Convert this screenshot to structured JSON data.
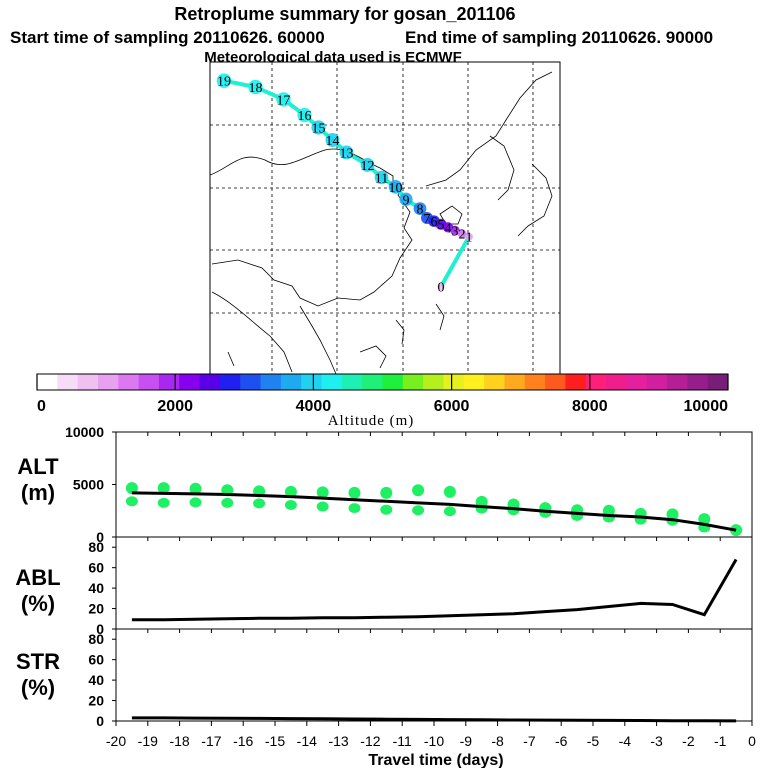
{
  "header": {
    "title": "Retroplume summary for gosan_201106",
    "start_label": "Start time of sampling 20110626. 60000",
    "end_label": "End time of sampling 20110626. 90000",
    "met_label": "Meteorological data used is ECMWF"
  },
  "chart_data": [
    {
      "type": "map",
      "title": "Retroplume summary for gosan_201106",
      "plume_points": [
        {
          "label": "19",
          "lon": 0.04,
          "lat": 0.06,
          "alt": 4300
        },
        {
          "label": "18",
          "lon": 0.13,
          "lat": 0.08,
          "alt": 4250
        },
        {
          "label": "17",
          "lon": 0.21,
          "lat": 0.12,
          "alt": 4200
        },
        {
          "label": "16",
          "lon": 0.27,
          "lat": 0.17,
          "alt": 4150
        },
        {
          "label": "15",
          "lon": 0.31,
          "lat": 0.21,
          "alt": 4100
        },
        {
          "label": "14",
          "lon": 0.35,
          "lat": 0.25,
          "alt": 4000
        },
        {
          "label": "13",
          "lon": 0.39,
          "lat": 0.29,
          "alt": 3950
        },
        {
          "label": "12",
          "lon": 0.45,
          "lat": 0.33,
          "alt": 3900
        },
        {
          "label": "11",
          "lon": 0.49,
          "lat": 0.37,
          "alt": 3850
        },
        {
          "label": "10",
          "lon": 0.53,
          "lat": 0.4,
          "alt": 3800
        },
        {
          "label": "9",
          "lon": 0.56,
          "lat": 0.44,
          "alt": 3600
        },
        {
          "label": "8",
          "lon": 0.6,
          "lat": 0.47,
          "alt": 3400
        },
        {
          "label": "7",
          "lon": 0.62,
          "lat": 0.5,
          "alt": 3000
        },
        {
          "label": "6",
          "lon": 0.64,
          "lat": 0.51,
          "alt": 2800
        },
        {
          "label": "5",
          "lon": 0.66,
          "lat": 0.52,
          "alt": 2500
        },
        {
          "label": "4",
          "lon": 0.68,
          "lat": 0.53,
          "alt": 2200
        },
        {
          "label": "3",
          "lon": 0.7,
          "lat": 0.54,
          "alt": 1800
        },
        {
          "label": "2",
          "lon": 0.72,
          "lat": 0.55,
          "alt": 1400
        },
        {
          "label": "1",
          "lon": 0.74,
          "lat": 0.56,
          "alt": 900
        },
        {
          "label": "0",
          "lon": 0.66,
          "lat": 0.72,
          "alt": 600
        }
      ],
      "colorbar": {
        "label": "Altitude (m)",
        "ticks": [
          "0",
          "2000",
          "4000",
          "6000",
          "8000",
          "10000"
        ],
        "colors": [
          "#ffffff",
          "#f7dcf7",
          "#f0c0f0",
          "#e8a0f0",
          "#dc78f0",
          "#c850f0",
          "#a828f0",
          "#8800f0",
          "#5a00e8",
          "#2020f0",
          "#1e50f0",
          "#1e82f0",
          "#1eaaf0",
          "#1ed2f0",
          "#1ef0f0",
          "#1ef0b4",
          "#1ef078",
          "#1ef03c",
          "#78f01e",
          "#b4f01e",
          "#e6f01e",
          "#fff01e",
          "#ffd21e",
          "#ffaa1e",
          "#ff821e",
          "#ff5a1e",
          "#ff1e1e",
          "#ff1e78",
          "#f01e8c",
          "#e61ea0",
          "#d21ea0",
          "#b41e96",
          "#961e8c",
          "#781e78"
        ]
      }
    },
    {
      "type": "scatter+line",
      "ylabel": "ALT (m)",
      "ylim": [
        0,
        10000
      ],
      "yticks": [
        "10000",
        "5000",
        "0"
      ],
      "x": [
        -19.5,
        -18.5,
        -17.5,
        -16.5,
        -15.5,
        -14.5,
        -13.5,
        -12.5,
        -11.5,
        -10.5,
        -9.5,
        -8.5,
        -7.5,
        -6.5,
        -5.5,
        -4.5,
        -3.5,
        -2.5,
        -1.5,
        -0.5
      ],
      "median_altitude": [
        4200,
        4150,
        4100,
        4050,
        3950,
        3850,
        3700,
        3550,
        3400,
        3250,
        3100,
        2900,
        2700,
        2450,
        2250,
        2050,
        1900,
        1650,
        1200,
        650
      ],
      "cluster_altitudes": [
        [
          3400,
          4650
        ],
        [
          3250,
          4650
        ],
        [
          3300,
          4600
        ],
        [
          3250,
          4450
        ],
        [
          3200,
          4350
        ],
        [
          3050,
          4300
        ],
        [
          2900,
          4250
        ],
        [
          2750,
          4200
        ],
        [
          2600,
          4200
        ],
        [
          2550,
          4450
        ],
        [
          2450,
          4300
        ],
        [
          2700,
          3350
        ],
        [
          2550,
          3100
        ],
        [
          2300,
          2750
        ],
        [
          2000,
          2550
        ],
        [
          1850,
          2500
        ],
        [
          1650,
          2200
        ],
        [
          1550,
          2150
        ],
        [
          900,
          1700
        ],
        [
          650,
          650
        ]
      ]
    },
    {
      "type": "line",
      "ylabel": "ABL (%)",
      "ylim": [
        0,
        90
      ],
      "yticks": [
        "80",
        "60",
        "40",
        "20",
        "0"
      ],
      "x": [
        -19.5,
        -18.5,
        -17.5,
        -16.5,
        -15.5,
        -14.5,
        -13.5,
        -12.5,
        -11.5,
        -10.5,
        -9.5,
        -8.5,
        -7.5,
        -6.5,
        -5.5,
        -4.5,
        -3.5,
        -2.5,
        -1.5,
        -0.5
      ],
      "values": [
        9,
        9,
        9.5,
        10,
        10.5,
        10.5,
        11,
        11,
        11.5,
        12,
        13,
        14,
        15,
        17,
        19,
        22,
        25,
        24,
        14,
        68
      ]
    },
    {
      "type": "line",
      "ylabel": "STR (%)",
      "ylim": [
        0,
        90
      ],
      "yticks": [
        "80",
        "60",
        "40",
        "20",
        "0"
      ],
      "xlabel": "Travel time (days)",
      "xticks": [
        "-20",
        "-19",
        "-18",
        "-17",
        "-16",
        "-15",
        "-14",
        "-13",
        "-12",
        "-11",
        "-10",
        "-9",
        "-8",
        "-7",
        "-6",
        "-5",
        "-4",
        "-3",
        "-2",
        "-1",
        "0"
      ],
      "x": [
        -19.5,
        -18.5,
        -17.5,
        -16.5,
        -15.5,
        -14.5,
        -13.5,
        -12.5,
        -11.5,
        -10.5,
        -9.5,
        -8.5,
        -7.5,
        -6.5,
        -5.5,
        -4.5,
        -3.5,
        -2.5,
        -1.5,
        -0.5
      ],
      "values": [
        3,
        3,
        2.8,
        2.7,
        2.5,
        2.3,
        2.2,
        2,
        1.8,
        1.6,
        1.4,
        1.2,
        1,
        0.9,
        0.8,
        0.6,
        0.5,
        0.3,
        0.2,
        0.1
      ]
    }
  ]
}
